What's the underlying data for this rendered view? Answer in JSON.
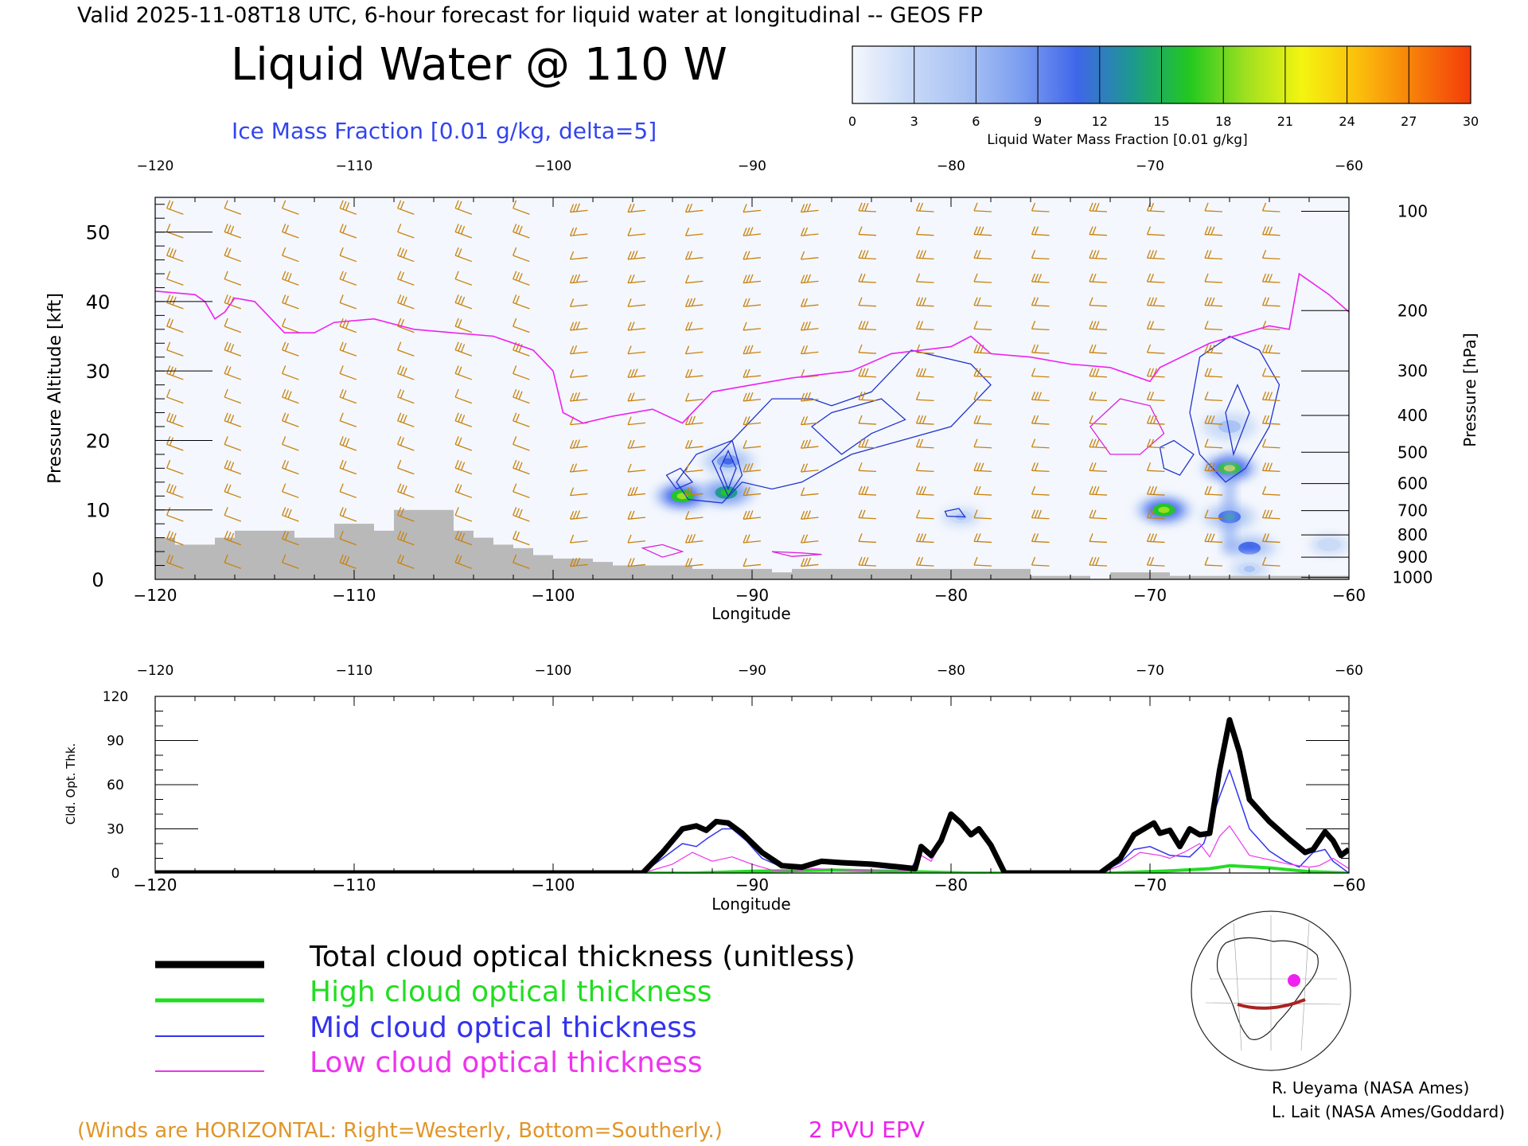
{
  "header": {
    "valid_line": "Valid 2025-11-08T18 UTC, 6-hour forecast for liquid water at longitudinal -- GEOS FP",
    "title": "Liquid Water @ 110 W",
    "ice_label": "Ice Mass Fraction [0.01 g/kg, delta=5]"
  },
  "colorbar": {
    "ticks": [
      "0",
      "3",
      "6",
      "9",
      "12",
      "15",
      "18",
      "21",
      "24",
      "27",
      "30"
    ],
    "label": "Liquid Water Mass Fraction [0.01 g/kg]",
    "colors": [
      "#f4f7fd",
      "#c9daf7",
      "#a9c2f4",
      "#7c9ef0",
      "#3f66ea",
      "#1c9a8c",
      "#22c820",
      "#9ee020",
      "#f4f410",
      "#fbbf0c",
      "#f77e0a",
      "#f43c0a"
    ]
  },
  "legend": {
    "items": [
      {
        "label": "Total cloud optical thickness (unitless)",
        "color": "#000000"
      },
      {
        "label": "High cloud optical thickness",
        "color": "#22dd22"
      },
      {
        "label": "Mid cloud optical thickness",
        "color": "#3333ee"
      },
      {
        "label": "Low cloud optical thickness",
        "color": "#ee33ee"
      }
    ]
  },
  "footer": {
    "winds_note": "(Winds are HORIZONTAL: Right=Westerly, Bottom=Southerly.)",
    "pvu_label": "2 PVU EPV",
    "credit1": "R. Ueyama (NASA Ames)",
    "credit2": "L. Lait (NASA Ames/Goddard)"
  },
  "chart_data": [
    {
      "type": "heatmap",
      "title": "Liquid Water @ 110 W",
      "xlabel": "Longitude",
      "ylabel": "Pressure Altitude [kft]",
      "ylabel_right": "Pressure [hPa]",
      "xlim": [
        -120,
        -60
      ],
      "ylim": [
        0,
        55
      ],
      "x_ticks": [
        "-120",
        "-110",
        "-100",
        "-90",
        "-80",
        "-70",
        "-60"
      ],
      "y_ticks": [
        "0",
        "10",
        "20",
        "30",
        "40",
        "50"
      ],
      "pressure_ticks": [
        {
          "label": "100",
          "kft": 53
        },
        {
          "label": "200",
          "kft": 38.7
        },
        {
          "label": "300",
          "kft": 30
        },
        {
          "label": "400",
          "kft": 23.6
        },
        {
          "label": "500",
          "kft": 18.3
        },
        {
          "label": "600",
          "kft": 13.8
        },
        {
          "label": "700",
          "kft": 9.9
        },
        {
          "label": "800",
          "kft": 6.4
        },
        {
          "label": "900",
          "kft": 3.2
        },
        {
          "label": "1000",
          "kft": 0.3
        }
      ],
      "liquid_water_blobs": [
        {
          "lon": -93.5,
          "kft": 12,
          "peak": 20
        },
        {
          "lon": -91.3,
          "kft": 12.5,
          "peak": 17
        },
        {
          "lon": -69.3,
          "kft": 10,
          "peak": 20
        },
        {
          "lon": -66,
          "kft": 16,
          "peak": 21
        },
        {
          "lon": -66,
          "kft": 9,
          "peak": 13
        },
        {
          "lon": -65,
          "kft": 4.5,
          "peak": 12
        },
        {
          "lon": -91.2,
          "kft": 17,
          "peak": 10
        },
        {
          "lon": -79.5,
          "kft": 9,
          "peak": 5
        },
        {
          "lon": -66,
          "kft": 22,
          "peak": 6
        },
        {
          "lon": -65,
          "kft": 1.5,
          "peak": 5
        },
        {
          "lon": -61,
          "kft": 5,
          "peak": 4
        }
      ],
      "epv_2pvu_kft": [
        [
          -120,
          41.5
        ],
        [
          -118,
          41
        ],
        [
          -117.5,
          40
        ],
        [
          -117,
          37.5
        ],
        [
          -116.5,
          38.5
        ],
        [
          -116,
          40.5
        ],
        [
          -115,
          40
        ],
        [
          -113.5,
          35.5
        ],
        [
          -112,
          35.5
        ],
        [
          -111,
          37
        ],
        [
          -109,
          37.5
        ],
        [
          -107,
          36
        ],
        [
          -105,
          35.5
        ],
        [
          -103,
          35
        ],
        [
          -101,
          33
        ],
        [
          -100,
          30
        ],
        [
          -99.5,
          24
        ],
        [
          -98.5,
          22.5
        ],
        [
          -97,
          23.5
        ],
        [
          -95,
          24.5
        ],
        [
          -93.5,
          22.5
        ],
        [
          -92,
          27
        ],
        [
          -90,
          28
        ],
        [
          -88,
          29
        ],
        [
          -85,
          30
        ],
        [
          -83,
          32.5
        ],
        [
          -80,
          33.5
        ],
        [
          -79,
          35
        ],
        [
          -78,
          32.5
        ],
        [
          -76,
          32
        ],
        [
          -74,
          31
        ],
        [
          -72,
          30.5
        ],
        [
          -70,
          28.5
        ],
        [
          -69.5,
          30.5
        ],
        [
          -67,
          34
        ],
        [
          -64,
          36.5
        ],
        [
          -63,
          36
        ],
        [
          -62.5,
          44
        ],
        [
          -61,
          41
        ],
        [
          -60,
          38.5
        ]
      ],
      "terrain_kft": [
        [
          -120,
          6
        ],
        [
          -119,
          5
        ],
        [
          -118,
          5
        ],
        [
          -117,
          6
        ],
        [
          -116,
          7
        ],
        [
          -115,
          7
        ],
        [
          -114,
          7
        ],
        [
          -113,
          6
        ],
        [
          -112,
          6
        ],
        [
          -111,
          8
        ],
        [
          -110,
          8
        ],
        [
          -109,
          7
        ],
        [
          -108,
          10
        ],
        [
          -107,
          10
        ],
        [
          -106,
          10
        ],
        [
          -105,
          7
        ],
        [
          -104,
          6
        ],
        [
          -103,
          5
        ],
        [
          -102,
          4.5
        ],
        [
          -101,
          3.5
        ],
        [
          -100,
          3
        ],
        [
          -98,
          2.5
        ],
        [
          -97,
          2
        ],
        [
          -93,
          1.5
        ],
        [
          -89,
          1
        ],
        [
          -88,
          1.5
        ],
        [
          -80,
          1.5
        ],
        [
          -77,
          1.5
        ],
        [
          -76,
          0.5
        ],
        [
          -73,
          0
        ],
        [
          -72,
          1
        ],
        [
          -71,
          1
        ],
        [
          -69,
          0.5
        ],
        [
          -60,
          0
        ]
      ]
    },
    {
      "type": "line",
      "xlabel": "Longitude",
      "ylabel": "Cld. Opt. Thk.",
      "xlim": [
        -120,
        -60
      ],
      "ylim": [
        0,
        120
      ],
      "x_ticks": [
        "-120",
        "-110",
        "-100",
        "-90",
        "-80",
        "-70",
        "-60"
      ],
      "y_ticks": [
        "0",
        "30",
        "60",
        "90",
        "120"
      ],
      "series": [
        {
          "name": "Total cloud optical thickness (unitless)",
          "color": "#000000",
          "points": [
            [
              -120,
              0
            ],
            [
              -95.5,
              0
            ],
            [
              -94.5,
              14
            ],
            [
              -93.5,
              30
            ],
            [
              -92.8,
              32
            ],
            [
              -92.3,
              29
            ],
            [
              -91.8,
              35
            ],
            [
              -91.2,
              34
            ],
            [
              -90.5,
              27
            ],
            [
              -89.5,
              14
            ],
            [
              -88.5,
              5
            ],
            [
              -87.5,
              4
            ],
            [
              -86.5,
              8
            ],
            [
              -85.5,
              7
            ],
            [
              -84,
              6
            ],
            [
              -82.5,
              4
            ],
            [
              -81.8,
              3
            ],
            [
              -81.5,
              18
            ],
            [
              -81,
              12
            ],
            [
              -80.5,
              22
            ],
            [
              -80,
              40
            ],
            [
              -79.5,
              34
            ],
            [
              -79,
              26
            ],
            [
              -78.6,
              30
            ],
            [
              -78,
              19
            ],
            [
              -77.3,
              0
            ],
            [
              -72.5,
              0
            ],
            [
              -71.5,
              10
            ],
            [
              -70.8,
              26
            ],
            [
              -69.8,
              34
            ],
            [
              -69.5,
              27
            ],
            [
              -69,
              29
            ],
            [
              -68.5,
              18
            ],
            [
              -68,
              30
            ],
            [
              -67.5,
              26
            ],
            [
              -67,
              27
            ],
            [
              -66.5,
              70
            ],
            [
              -66,
              104
            ],
            [
              -65.5,
              82
            ],
            [
              -65,
              50
            ],
            [
              -64,
              35
            ],
            [
              -63,
              23
            ],
            [
              -62.2,
              14
            ],
            [
              -61.8,
              16
            ],
            [
              -61.2,
              28
            ],
            [
              -60.8,
              22
            ],
            [
              -60.4,
              12
            ],
            [
              -60,
              16
            ]
          ]
        },
        {
          "name": "High cloud optical thickness",
          "color": "#22dd22",
          "points": [
            [
              -120,
              0
            ],
            [
              -93,
              0
            ],
            [
              -90,
              1.2
            ],
            [
              -86,
              2
            ],
            [
              -82,
              1
            ],
            [
              -79,
              0
            ],
            [
              -72,
              0
            ],
            [
              -69,
              1.5
            ],
            [
              -67,
              3
            ],
            [
              -66,
              5
            ],
            [
              -64,
              3.5
            ],
            [
              -62,
              1
            ],
            [
              -60,
              0
            ]
          ]
        },
        {
          "name": "Mid cloud optical thickness",
          "color": "#3333ee",
          "points": [
            [
              -120,
              0
            ],
            [
              -95.5,
              0
            ],
            [
              -94.5,
              10
            ],
            [
              -93.5,
              20
            ],
            [
              -92.8,
              18
            ],
            [
              -92.2,
              24
            ],
            [
              -91.5,
              30
            ],
            [
              -91,
              30
            ],
            [
              -90.3,
              22
            ],
            [
              -89.5,
              10
            ],
            [
              -88.5,
              4
            ],
            [
              -87.5,
              3
            ],
            [
              -86.5,
              7
            ],
            [
              -85,
              6
            ],
            [
              -83,
              3
            ],
            [
              -82,
              3
            ],
            [
              -81.5,
              16
            ],
            [
              -81,
              10
            ],
            [
              -80.5,
              20
            ],
            [
              -80,
              39
            ],
            [
              -79.5,
              33
            ],
            [
              -79,
              26
            ],
            [
              -78.6,
              29
            ],
            [
              -78,
              18
            ],
            [
              -77.3,
              0
            ],
            [
              -72.5,
              0
            ],
            [
              -71.5,
              7
            ],
            [
              -70.8,
              16
            ],
            [
              -70,
              18
            ],
            [
              -69,
              12
            ],
            [
              -68,
              11
            ],
            [
              -67.3,
              20
            ],
            [
              -66.5,
              52
            ],
            [
              -66,
              70
            ],
            [
              -65.5,
              50
            ],
            [
              -65,
              30
            ],
            [
              -64,
              15
            ],
            [
              -63.2,
              8
            ],
            [
              -62.5,
              4
            ],
            [
              -61.8,
              14
            ],
            [
              -61.2,
              16
            ],
            [
              -60.8,
              8
            ],
            [
              -60,
              0
            ]
          ]
        },
        {
          "name": "Low cloud optical thickness",
          "color": "#ee33ee",
          "points": [
            [
              -120,
              0
            ],
            [
              -95.5,
              0
            ],
            [
              -94,
              6
            ],
            [
              -93,
              14
            ],
            [
              -92,
              8
            ],
            [
              -91,
              11
            ],
            [
              -90,
              6
            ],
            [
              -89,
              2
            ],
            [
              -88,
              1
            ],
            [
              -87,
              3
            ],
            [
              -85,
              2
            ],
            [
              -83,
              1
            ],
            [
              -82,
              2
            ],
            [
              -81.5,
              12
            ],
            [
              -81,
              8
            ],
            [
              -80.5,
              20
            ],
            [
              -80,
              38
            ],
            [
              -79.5,
              32
            ],
            [
              -79,
              25
            ],
            [
              -78.6,
              29
            ],
            [
              -78,
              18
            ],
            [
              -77.3,
              0
            ],
            [
              -72.5,
              0
            ],
            [
              -71.5,
              5
            ],
            [
              -70.5,
              14
            ],
            [
              -69.5,
              12
            ],
            [
              -69,
              10
            ],
            [
              -68.3,
              14
            ],
            [
              -67.5,
              20
            ],
            [
              -67,
              11
            ],
            [
              -66.5,
              25
            ],
            [
              -66,
              32
            ],
            [
              -65.5,
              22
            ],
            [
              -65,
              12
            ],
            [
              -64,
              9
            ],
            [
              -63,
              6
            ],
            [
              -62,
              4
            ],
            [
              -61.5,
              5
            ],
            [
              -60.8,
              10
            ],
            [
              -60,
              3
            ]
          ]
        }
      ]
    }
  ]
}
